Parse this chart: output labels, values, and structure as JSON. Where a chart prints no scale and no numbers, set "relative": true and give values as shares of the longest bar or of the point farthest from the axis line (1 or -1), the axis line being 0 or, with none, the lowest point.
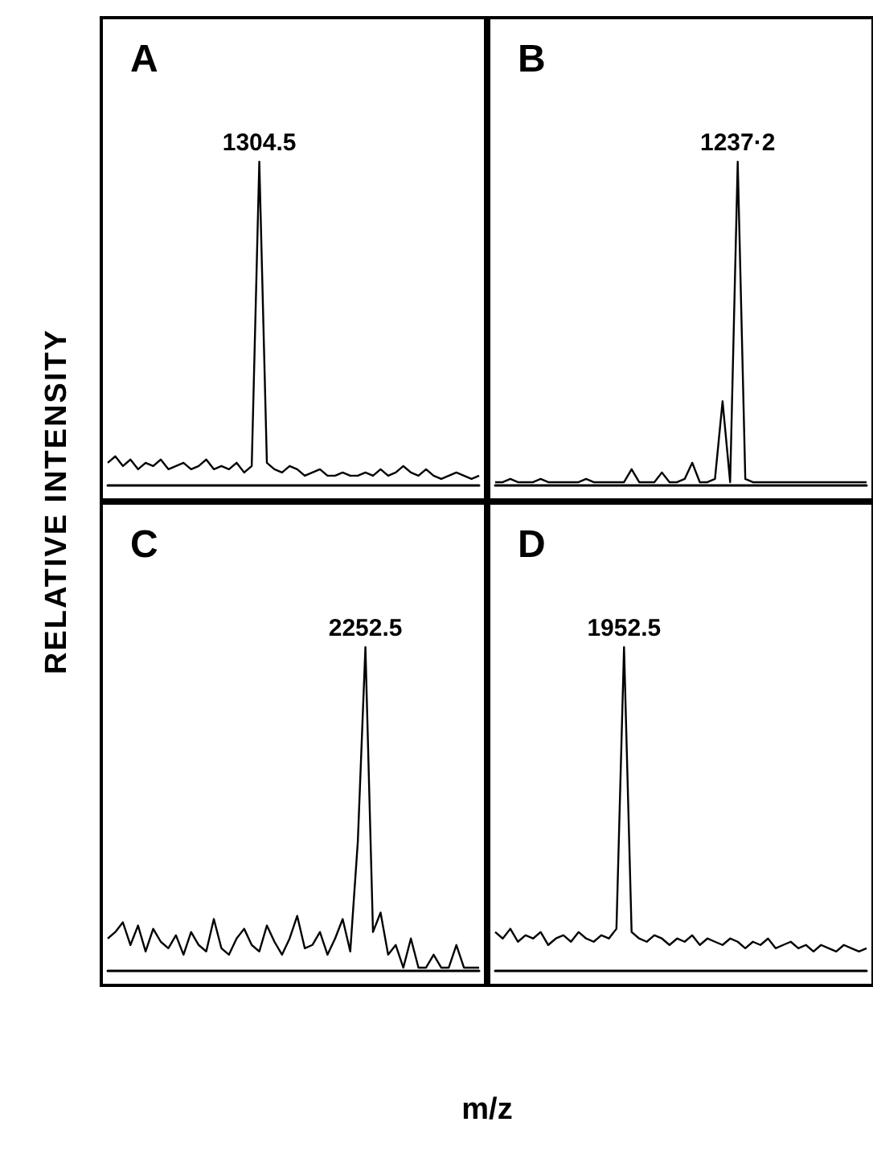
{
  "chart_data": [
    {
      "type": "line",
      "title": "A",
      "ylabel": "RELATIVE INTENSITY",
      "relative": true,
      "annotations": [
        "1304.5"
      ],
      "categories": [
        null,
        null,
        null,
        null,
        null,
        null,
        null,
        null,
        null,
        null,
        null,
        null,
        null,
        null,
        null,
        null,
        null,
        null,
        null,
        null,
        null,
        null,
        null,
        null,
        null,
        null,
        null,
        null,
        null,
        null,
        null,
        null,
        null,
        null,
        null,
        null,
        null,
        null,
        null,
        null,
        null,
        null,
        null,
        null,
        null,
        null,
        null,
        null,
        null,
        null
      ],
      "series": [
        {
          "color": "#000000",
          "values": [
            0.07,
            0.09,
            0.06,
            0.08,
            0.05,
            0.07,
            0.06,
            0.08,
            0.05,
            0.06,
            0.07,
            0.05,
            0.06,
            0.08,
            0.05,
            0.06,
            0.05,
            0.07,
            0.04,
            0.06,
            1,
            0.07,
            0.05,
            0.04,
            0.06,
            0.05,
            0.03,
            0.04,
            0.05,
            0.03,
            0.03,
            0.04,
            0.03,
            0.03,
            0.04,
            0.03,
            0.05,
            0.03,
            0.04,
            0.06,
            0.04,
            0.03,
            0.05,
            0.03,
            0.02,
            0.03,
            0.04,
            0.03,
            0.02,
            0.03
          ]
        }
      ]
    },
    {
      "type": "line",
      "title": "B",
      "relative": true,
      "annotations": [
        "1237·2"
      ],
      "categories": [
        null,
        null,
        null,
        null,
        null,
        null,
        null,
        null,
        null,
        null,
        null,
        null,
        null,
        null,
        null,
        null,
        null,
        null,
        null,
        null,
        null,
        null,
        null,
        null,
        null,
        null,
        null,
        null,
        null,
        null,
        null,
        null,
        null,
        null,
        null,
        null,
        null,
        null,
        null,
        null,
        null,
        null,
        null,
        null,
        null,
        null,
        null,
        null,
        null,
        null
      ],
      "series": [
        {
          "color": "#000000",
          "values": [
            0.01,
            0.01,
            0.02,
            0.01,
            0.01,
            0.01,
            0.02,
            0.01,
            0.01,
            0.01,
            0.01,
            0.01,
            0.02,
            0.01,
            0.01,
            0.01,
            0.01,
            0.01,
            0.05,
            0.01,
            0.01,
            0.01,
            0.04,
            0.01,
            0.01,
            0.02,
            0.07,
            0.01,
            0.01,
            0.02,
            0.26,
            0.01,
            1,
            0.02,
            0.01,
            0.01,
            0.01,
            0.01,
            0.01,
            0.01,
            0.01,
            0.01,
            0.01,
            0.01,
            0.01,
            0.01,
            0.01,
            0.01,
            0.01,
            0.01
          ]
        }
      ]
    },
    {
      "type": "line",
      "title": "C",
      "relative": true,
      "annotations": [
        "2252.5"
      ],
      "categories": [
        null,
        null,
        null,
        null,
        null,
        null,
        null,
        null,
        null,
        null,
        null,
        null,
        null,
        null,
        null,
        null,
        null,
        null,
        null,
        null,
        null,
        null,
        null,
        null,
        null,
        null,
        null,
        null,
        null,
        null,
        null,
        null,
        null,
        null,
        null,
        null,
        null,
        null,
        null,
        null,
        null,
        null,
        null,
        null,
        null,
        null,
        null,
        null,
        null,
        null
      ],
      "series": [
        {
          "color": "#000000",
          "values": [
            0.1,
            0.12,
            0.15,
            0.08,
            0.14,
            0.06,
            0.13,
            0.09,
            0.07,
            0.11,
            0.05,
            0.12,
            0.08,
            0.06,
            0.16,
            0.07,
            0.05,
            0.1,
            0.13,
            0.08,
            0.06,
            0.14,
            0.09,
            0.05,
            0.1,
            0.17,
            0.07,
            0.08,
            0.12,
            0.05,
            0.1,
            0.16,
            0.06,
            0.4,
            1,
            0.12,
            0.18,
            0.05,
            0.08,
            0.01,
            0.1,
            0.01,
            0.01,
            0.05,
            0.01,
            0.01,
            0.08,
            0.01,
            0.01,
            0.01
          ]
        }
      ]
    },
    {
      "type": "line",
      "title": "D",
      "xlabel": "m/z",
      "relative": true,
      "annotations": [
        "1952.5"
      ],
      "categories": [
        null,
        null,
        null,
        null,
        null,
        null,
        null,
        null,
        null,
        null,
        null,
        null,
        null,
        null,
        null,
        null,
        null,
        null,
        null,
        null,
        null,
        null,
        null,
        null,
        null,
        null,
        null,
        null,
        null,
        null,
        null,
        null,
        null,
        null,
        null,
        null,
        null,
        null,
        null,
        null,
        null,
        null,
        null,
        null,
        null,
        null,
        null,
        null,
        null,
        null
      ],
      "series": [
        {
          "color": "#000000",
          "values": [
            0.12,
            0.1,
            0.13,
            0.09,
            0.11,
            0.1,
            0.12,
            0.08,
            0.1,
            0.11,
            0.09,
            0.12,
            0.1,
            0.09,
            0.11,
            0.1,
            0.13,
            1,
            0.12,
            0.1,
            0.09,
            0.11,
            0.1,
            0.08,
            0.1,
            0.09,
            0.11,
            0.08,
            0.1,
            0.09,
            0.08,
            0.1,
            0.09,
            0.07,
            0.09,
            0.08,
            0.1,
            0.07,
            0.08,
            0.09,
            0.07,
            0.08,
            0.06,
            0.08,
            0.07,
            0.06,
            0.08,
            0.07,
            0.06,
            0.07
          ]
        }
      ]
    }
  ]
}
